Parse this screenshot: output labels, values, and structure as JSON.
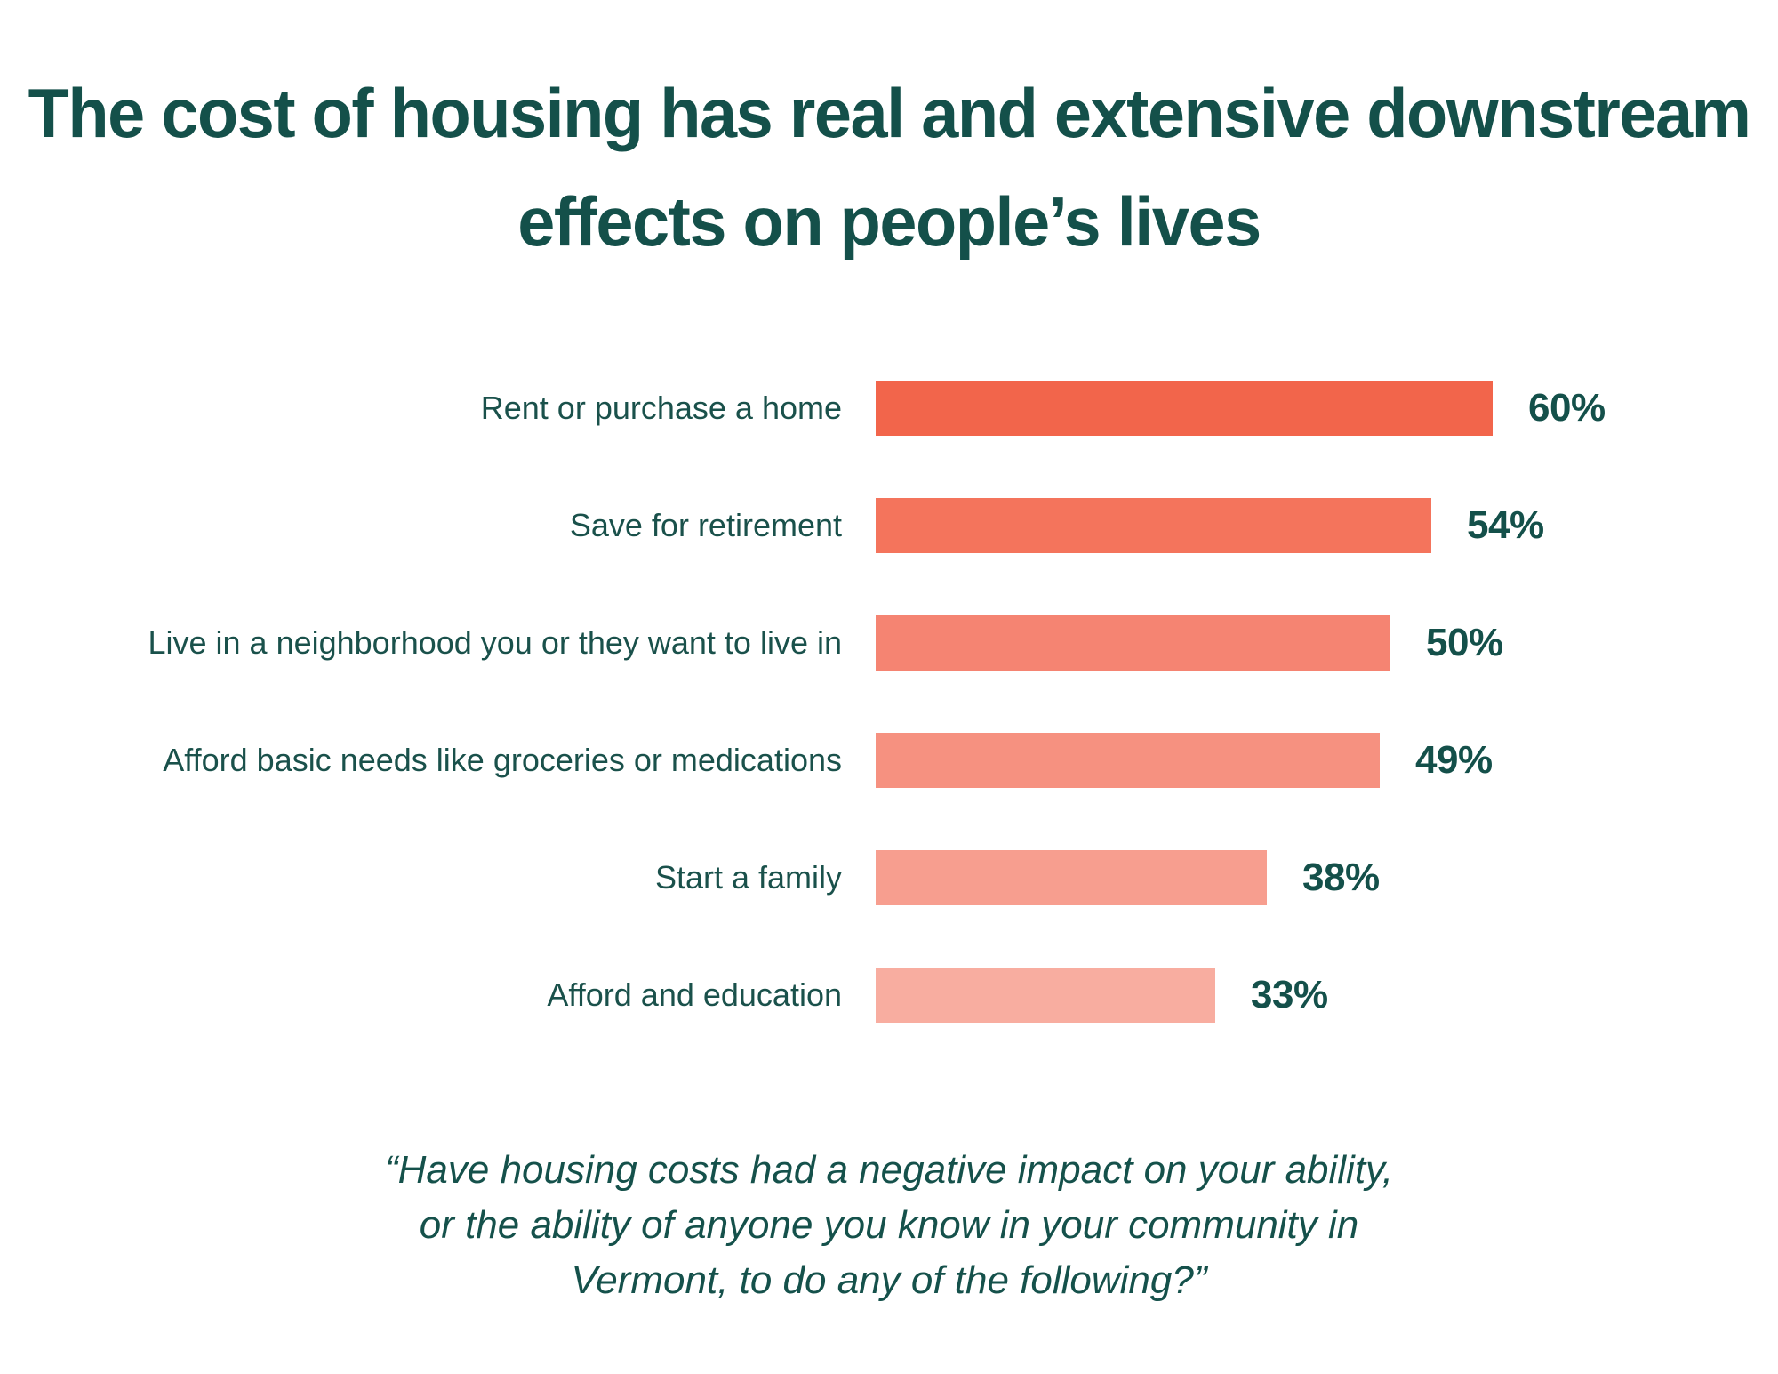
{
  "title": {
    "text": "The cost of housing has real and extensive downstream effects on people’s lives"
  },
  "chart_data": {
    "type": "bar",
    "orientation": "horizontal",
    "title": "The cost of housing has real and extensive downstream effects on people’s lives",
    "categories": [
      "Rent or purchase a home",
      "Save for retirement",
      "Live in a neighborhood you or they want to live in",
      "Afford basic needs like groceries or medications",
      "Start a family",
      "Afford and education"
    ],
    "values": [
      60,
      54,
      50,
      49,
      38,
      33
    ],
    "value_labels": [
      "60%",
      "54%",
      "50%",
      "49%",
      "38%",
      "33%"
    ],
    "bar_colors": [
      "#F2654B",
      "#F4745C",
      "#F58472",
      "#F69180",
      "#F79E8F",
      "#F8ADA0"
    ],
    "xlabel": "",
    "ylabel": "",
    "xlim": [
      0,
      100
    ],
    "grid": false,
    "legend": false,
    "value_label_position": "right-of-bar"
  },
  "quote": {
    "lines": [
      "“Have housing costs had a negative impact on your ability,",
      "or the ability of anyone you know in your community in",
      "Vermont, to do any of the following?”"
    ]
  },
  "colors": {
    "background": "#FFFFFF",
    "title_text": "#14504A",
    "label_text": "#1A514B",
    "value_text": "#14504A",
    "quote_text": "#15514B"
  }
}
